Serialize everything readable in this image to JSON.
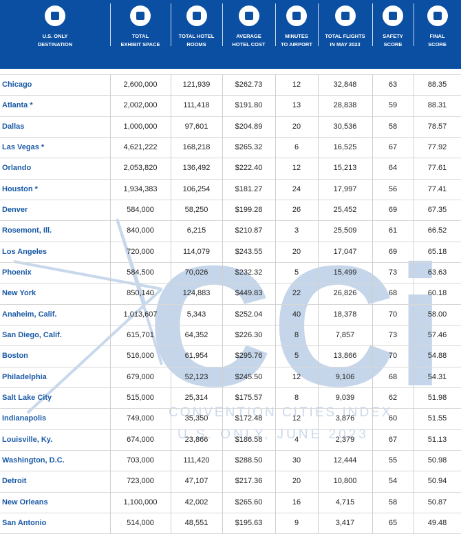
{
  "header": {
    "columns": [
      {
        "lines": [
          "U.S. ONLY",
          "DESTINATION"
        ]
      },
      {
        "lines": [
          "TOTAL",
          "EXHIBIT SPACE"
        ]
      },
      {
        "lines": [
          "TOTAL HOTEL",
          "ROOMS"
        ]
      },
      {
        "lines": [
          "AVERAGE",
          "HOTEL COST"
        ]
      },
      {
        "lines": [
          "MINUTES",
          "TO AIRPORT"
        ]
      },
      {
        "lines": [
          "TOTAL FLIGHTS",
          "IN MAY 2023"
        ]
      },
      {
        "lines": [
          "SAFETY",
          "SCORE"
        ]
      },
      {
        "lines": [
          "FINAL",
          "SCORE"
        ]
      }
    ]
  },
  "watermark": {
    "logo": "CCi",
    "line1": "CONVENTION CITIES INDEX",
    "line2": "U.S. ONLY, JUNE 2023"
  },
  "table": {
    "rows": [
      [
        "Chicago",
        "2,600,000",
        "121,939",
        "$262.73",
        "12",
        "32,848",
        "63",
        "88.35"
      ],
      [
        "Atlanta *",
        "2,002,000",
        "111,418",
        "$191.80",
        "13",
        "28,838",
        "59",
        "88.31"
      ],
      [
        "Dallas",
        "1,000,000",
        "97,601",
        "$204.89",
        "20",
        "30,536",
        "58",
        "78.57"
      ],
      [
        "Las Vegas *",
        "4,621,222",
        "168,218",
        "$265.32",
        "6",
        "16,525",
        "67",
        "77.92"
      ],
      [
        "Orlando",
        "2,053,820",
        "136,492",
        "$222.40",
        "12",
        "15,213",
        "64",
        "77.61"
      ],
      [
        "Houston *",
        "1,934,383",
        "106,254",
        "$181.27",
        "24",
        "17,997",
        "56",
        "77.41"
      ],
      [
        "Denver",
        "584,000",
        "58,250",
        "$199.28",
        "26",
        "25,452",
        "69",
        "67.35"
      ],
      [
        "Rosemont, Ill.",
        "840,000",
        "6,215",
        "$210.87",
        "3",
        "25,509",
        "61",
        "66.52"
      ],
      [
        "Los Angeles",
        "720,000",
        "114,079",
        "$243.55",
        "20",
        "17,047",
        "69",
        "65.18"
      ],
      [
        "Phoenix",
        "584,500",
        "70,026",
        "$232.32",
        "5",
        "15,499",
        "73",
        "63.63"
      ],
      [
        "New York",
        "850,140",
        "124,883",
        "$449.83",
        "22",
        "26,826",
        "68",
        "60.18"
      ],
      [
        "Anaheim, Calif.",
        "1,013,607",
        "5,343",
        "$252.04",
        "40",
        "18,378",
        "70",
        "58.00"
      ],
      [
        "San Diego, Calif.",
        "615,701",
        "64,352",
        "$226.30",
        "8",
        "7,857",
        "73",
        "57.46"
      ],
      [
        "Boston",
        "516,000",
        "61,954",
        "$295.76",
        "5",
        "13,866",
        "70",
        "54.88"
      ],
      [
        "Philadelphia",
        "679,000",
        "52,123",
        "$245.50",
        "12",
        "9,106",
        "68",
        "54.31"
      ],
      [
        "Salt Lake City",
        "515,000",
        "25,314",
        "$175.57",
        "8",
        "9,039",
        "62",
        "51.98"
      ],
      [
        "Indianapolis",
        "749,000",
        "35,350",
        "$172.48",
        "12",
        "3,876",
        "60",
        "51.55"
      ],
      [
        "Louisville, Ky.",
        "674,000",
        "23,866",
        "$186.58",
        "4",
        "2,379",
        "67",
        "51.13"
      ],
      [
        "Washington, D.C.",
        "703,000",
        "111,420",
        "$288.50",
        "30",
        "12,444",
        "55",
        "50.98"
      ],
      [
        "Detroit",
        "723,000",
        "47,107",
        "$217.36",
        "20",
        "10,800",
        "54",
        "50.94"
      ],
      [
        "New Orleans",
        "1,100,000",
        "42,002",
        "$265.60",
        "16",
        "4,715",
        "58",
        "50.87"
      ],
      [
        "San Antonio",
        "514,000",
        "48,551",
        "$195.63",
        "9",
        "3,417",
        "65",
        "49.48"
      ]
    ]
  }
}
